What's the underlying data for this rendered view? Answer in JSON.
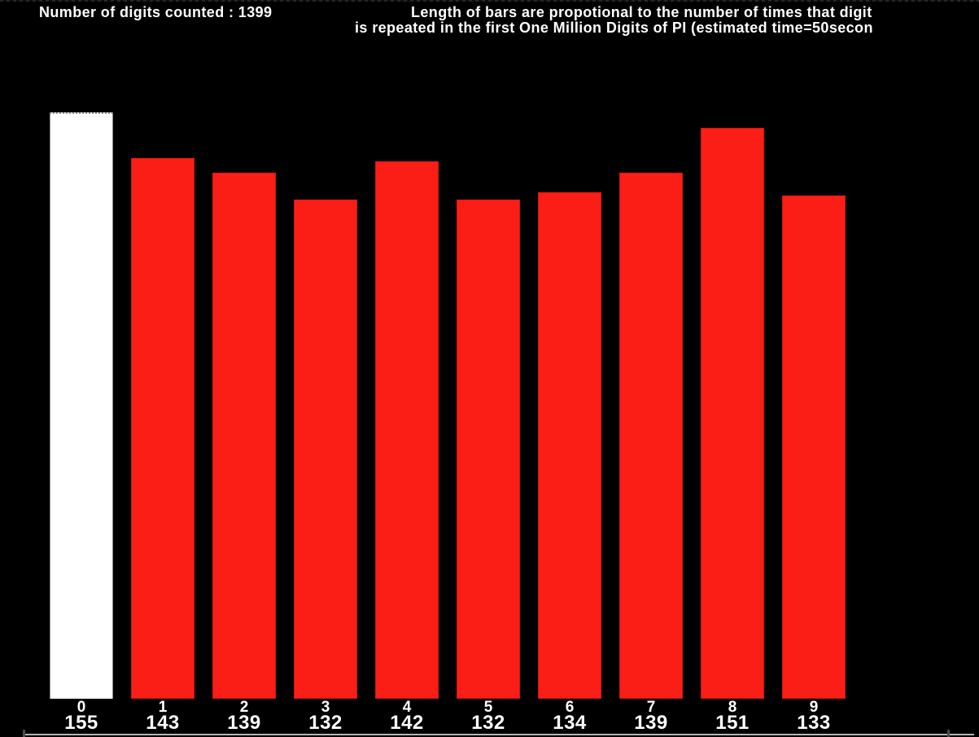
{
  "header": {
    "left_title": "Number of digits counted : 1399",
    "right_title_line1": "Length of bars are propotional to the number of times that digit",
    "right_title_line2": "is repeated in the first One Million Digits of PI (estimated time=50secon"
  },
  "chart_data": {
    "type": "bar",
    "categories": [
      "0",
      "1",
      "2",
      "3",
      "4",
      "5",
      "6",
      "7",
      "8",
      "9"
    ],
    "values": [
      155,
      143,
      139,
      132,
      142,
      132,
      134,
      139,
      151,
      133
    ],
    "title": "Number of digits counted : 1399",
    "subtitle": "Length of bars are propotional to the number of times that digit is repeated in the first One Million Digits of PI (estimated time=50secon",
    "xlabel": "",
    "ylabel": "",
    "grid": false,
    "legend": "none",
    "value_labels_shown": true,
    "background": "#000000",
    "bar_color": "#fa1e17",
    "highlight": {
      "index": 0,
      "color": "#ffffff"
    }
  },
  "colors": {
    "background": "#000000",
    "text": "#ffffff",
    "bar_red": "#fa1e17",
    "bar_highlight": "#ffffff",
    "bottom_border": "#b4b4b4"
  }
}
